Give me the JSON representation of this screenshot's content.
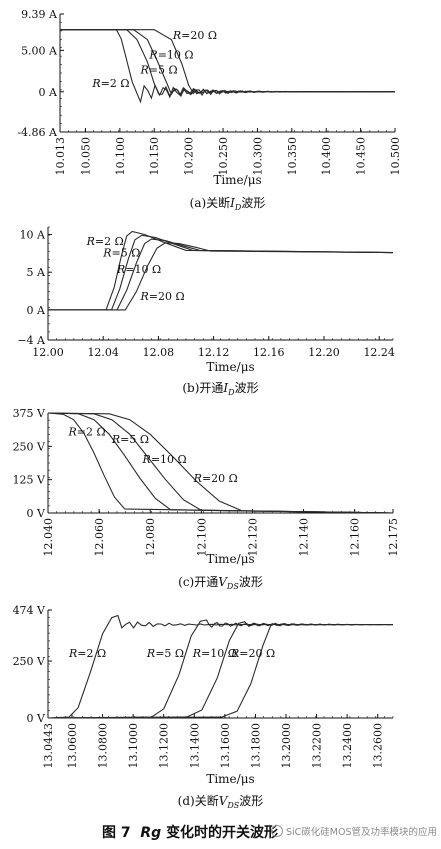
{
  "chart_data": [
    {
      "type": "line",
      "caption": "(a)关断I_D波形",
      "caption_parts": {
        "prefix": "(a)关断",
        "var": "I",
        "sub": "D",
        "suffix": "波形"
      },
      "xlabel": "Time/μs",
      "ylabel": "",
      "xlim": [
        10.013,
        10.5
      ],
      "ylim": [
        -4.86,
        9.39
      ],
      "xticks": [
        10.013,
        10.05,
        10.1,
        10.15,
        10.2,
        10.25,
        10.3,
        10.35,
        10.4,
        10.45,
        10.5
      ],
      "xtick_labels": [
        "10.013",
        "10.050",
        "10.100",
        "10.150",
        "10.200",
        "10.250",
        "10.300",
        "10.350",
        "10.400",
        "10.450",
        "10.500"
      ],
      "yticks": [
        -4.86,
        0,
        5,
        9.39
      ],
      "ytick_labels": [
        "-4.86 A",
        "0 A",
        "5.00 A",
        "9.39 A"
      ],
      "grid": false,
      "steady_value": 7.5,
      "series": [
        {
          "name": "R=2 Ω",
          "x": [
            10.013,
            10.095,
            10.102,
            10.11,
            10.118,
            10.125,
            10.13
          ],
          "y": [
            7.5,
            7.5,
            6.4,
            3.8,
            1.2,
            -0.2,
            -1.2
          ],
          "ringing_amplitude": 1.2
        },
        {
          "name": "R=5 Ω",
          "x": [
            10.013,
            10.11,
            10.125,
            10.14,
            10.15,
            10.158
          ],
          "y": [
            7.5,
            7.5,
            6.3,
            3.6,
            1.0,
            -0.4
          ],
          "ringing_amplitude": 0.9
        },
        {
          "name": "R=10 Ω",
          "x": [
            10.013,
            10.12,
            10.14,
            10.155,
            10.168,
            10.175
          ],
          "y": [
            7.5,
            7.5,
            6.3,
            3.6,
            1.1,
            -0.3
          ],
          "ringing_amplitude": 0.7
        },
        {
          "name": "R=20 Ω",
          "x": [
            10.013,
            10.15,
            10.175,
            10.19,
            10.2,
            10.207
          ],
          "y": [
            7.5,
            7.5,
            6.3,
            3.4,
            0.8,
            -0.2
          ],
          "ringing_amplitude": 0.5
        }
      ],
      "labels": [
        {
          "var": "R",
          "text": "=20 Ω",
          "x": 10.177,
          "y": 6.4
        },
        {
          "var": "R",
          "text": "=10 Ω",
          "x": 10.143,
          "y": 4.0
        },
        {
          "var": "R",
          "text": "=5 Ω",
          "x": 10.13,
          "y": 2.2
        },
        {
          "var": "R",
          "text": "=2 Ω",
          "x": 10.06,
          "y": 0.6
        }
      ]
    },
    {
      "type": "line",
      "caption": "(b)开通I_D波形",
      "caption_parts": {
        "prefix": "(b)开通",
        "var": "I",
        "sub": "D",
        "suffix": "波形"
      },
      "xlabel": "Time/μs",
      "ylabel": "",
      "xlim": [
        12.0,
        12.25
      ],
      "ylim": [
        -4,
        11
      ],
      "xticks": [
        12.0,
        12.04,
        12.08,
        12.12,
        12.16,
        12.2,
        12.24
      ],
      "xtick_labels": [
        "12.00",
        "12.04",
        "12.08",
        "12.12",
        "12.16",
        "12.20",
        "12.24"
      ],
      "yticks": [
        -4,
        0,
        5,
        10
      ],
      "ytick_labels": [
        "−4 A",
        "0 A",
        "5 A",
        "10 A"
      ],
      "grid": false,
      "series": [
        {
          "name": "R=2 Ω",
          "x": [
            12.0,
            12.042,
            12.048,
            12.053,
            12.057,
            12.061,
            12.07,
            12.085,
            12.1,
            12.25
          ],
          "y": [
            0,
            0,
            3.0,
            7.0,
            9.8,
            10.4,
            10.0,
            8.9,
            7.9,
            7.6
          ]
        },
        {
          "name": "R=5 Ω",
          "x": [
            12.0,
            12.046,
            12.052,
            12.058,
            12.063,
            12.068,
            12.078,
            12.092,
            12.105,
            12.25
          ],
          "y": [
            0,
            0,
            2.8,
            6.6,
            9.3,
            9.9,
            9.6,
            8.7,
            7.9,
            7.6
          ]
        },
        {
          "name": "R=10 Ω",
          "x": [
            12.0,
            12.05,
            12.057,
            12.064,
            12.07,
            12.075,
            12.085,
            12.098,
            12.11,
            12.25
          ],
          "y": [
            0,
            0,
            2.6,
            6.2,
            8.8,
            9.4,
            9.2,
            8.5,
            7.9,
            7.6
          ]
        },
        {
          "name": "R=20 Ω",
          "x": [
            12.0,
            12.056,
            12.064,
            12.072,
            12.079,
            12.085,
            12.095,
            12.107,
            12.118,
            12.25
          ],
          "y": [
            0,
            0,
            2.4,
            5.8,
            8.2,
            8.9,
            8.8,
            8.3,
            7.8,
            7.6
          ]
        }
      ],
      "labels": [
        {
          "var": "R",
          "text": "=2 Ω",
          "x": 12.028,
          "y": 8.6
        },
        {
          "var": "R",
          "text": "=5 Ω",
          "x": 12.04,
          "y": 7.1
        },
        {
          "var": "R",
          "text": "=10 Ω",
          "x": 12.05,
          "y": 4.9
        },
        {
          "var": "R",
          "text": "=20 Ω",
          "x": 12.067,
          "y": 1.3
        }
      ]
    },
    {
      "type": "line",
      "caption": "(c)开通V_DS波形",
      "caption_parts": {
        "prefix": "(c)开通",
        "var": "V",
        "sub": "DS",
        "suffix": "波形"
      },
      "xlabel": "Time/μs",
      "ylabel": "",
      "xlim": [
        12.04,
        12.175
      ],
      "ylim": [
        0,
        375
      ],
      "xticks": [
        12.04,
        12.06,
        12.08,
        12.1,
        12.12,
        12.14,
        12.16,
        12.175
      ],
      "xtick_labels": [
        "12.040",
        "12.060",
        "12.080",
        "12.100",
        "12.120",
        "12.140",
        "12.160",
        "12.175"
      ],
      "yticks": [
        0,
        125,
        250,
        375
      ],
      "ytick_labels": [
        "0 V",
        "125 V",
        "250 V",
        "375 V"
      ],
      "grid": false,
      "series": [
        {
          "name": "R=2 Ω",
          "x": [
            12.04,
            12.046,
            12.05,
            12.054,
            12.058,
            12.062,
            12.066,
            12.07,
            12.175
          ],
          "y": [
            375,
            370,
            350,
            300,
            225,
            140,
            60,
            15,
            0
          ]
        },
        {
          "name": "R=5 Ω",
          "x": [
            12.04,
            12.052,
            12.058,
            12.064,
            12.07,
            12.076,
            12.082,
            12.088,
            12.175
          ],
          "y": [
            375,
            372,
            350,
            295,
            215,
            130,
            55,
            12,
            0
          ]
        },
        {
          "name": "R=10 Ω",
          "x": [
            12.04,
            12.058,
            12.065,
            12.072,
            12.079,
            12.086,
            12.093,
            12.1,
            12.175
          ],
          "y": [
            375,
            372,
            350,
            295,
            210,
            125,
            50,
            10,
            0
          ]
        },
        {
          "name": "R=20 Ω",
          "x": [
            12.04,
            12.064,
            12.072,
            12.08,
            12.089,
            12.098,
            12.107,
            12.116,
            12.175
          ],
          "y": [
            375,
            372,
            350,
            295,
            210,
            120,
            45,
            8,
            0
          ]
        }
      ],
      "labels": [
        {
          "var": "R",
          "text": "=2 Ω",
          "x": 12.048,
          "y": 290
        },
        {
          "var": "R",
          "text": "=5 Ω",
          "x": 12.065,
          "y": 262
        },
        {
          "var": "R",
          "text": "=10 Ω",
          "x": 12.077,
          "y": 188
        },
        {
          "var": "R",
          "text": "=20 Ω",
          "x": 12.097,
          "y": 117
        }
      ]
    },
    {
      "type": "line",
      "caption": "(d)关断V_DS波形",
      "caption_parts": {
        "prefix": "(d)关断",
        "var": "V",
        "sub": "DS",
        "suffix": "波形"
      },
      "xlabel": "Time/μs",
      "ylabel": "",
      "xlim": [
        13.0443,
        13.27
      ],
      "ylim": [
        0,
        474
      ],
      "xticks": [
        13.0443,
        13.06,
        13.08,
        13.1,
        13.12,
        13.14,
        13.16,
        13.18,
        13.2,
        13.22,
        13.24,
        13.26
      ],
      "xtick_labels": [
        "13.0443",
        "13.0600",
        "13.0800",
        "13.1000",
        "13.1200",
        "13.1400",
        "13.1600",
        "13.1800",
        "13.2000",
        "13.2200",
        "13.2400",
        "13.2600"
      ],
      "yticks": [
        0,
        250,
        474
      ],
      "ytick_labels": [
        "0 V",
        "250 V",
        "474 V"
      ],
      "grid": false,
      "steady_value": 410,
      "series": [
        {
          "name": "R=2 Ω",
          "x": [
            13.0443,
            13.058,
            13.064,
            13.072,
            13.08,
            13.086,
            13.09
          ],
          "y": [
            0,
            4,
            45,
            200,
            370,
            440,
            450
          ],
          "ringing_amplitude": 22
        },
        {
          "name": "R=5 Ω",
          "x": [
            13.0443,
            13.112,
            13.12,
            13.13,
            13.138,
            13.144,
            13.148
          ],
          "y": [
            0,
            4,
            40,
            190,
            360,
            425,
            430
          ],
          "ringing_amplitude": 13
        },
        {
          "name": "R=10 Ω",
          "x": [
            13.0443,
            13.135,
            13.145,
            13.155,
            13.163,
            13.169,
            13.173
          ],
          "y": [
            0,
            4,
            35,
            175,
            340,
            415,
            422
          ],
          "ringing_amplitude": 9
        },
        {
          "name": "R=20 Ω",
          "x": [
            13.0443,
            13.158,
            13.168,
            13.177,
            13.185,
            13.19,
            13.193
          ],
          "y": [
            0,
            4,
            30,
            150,
            320,
            405,
            415
          ],
          "ringing_amplitude": 6
        }
      ],
      "labels": [
        {
          "var": "R",
          "text": "=2 Ω",
          "x": 13.058,
          "y": 268
        },
        {
          "var": "R",
          "text": "=5 Ω",
          "x": 13.109,
          "y": 268
        },
        {
          "var": "R",
          "text": "=10 Ω",
          "x": 13.139,
          "y": 268
        },
        {
          "var": "R",
          "text": "=20 Ω",
          "x": 13.164,
          "y": 268
        }
      ]
    }
  ],
  "figure": {
    "title_prefix": "图 7",
    "title_var": "Rg",
    "title_suffix": "变化时的开关波形"
  },
  "watermark": "SiC碳化硅MOS管及功率模块的应用",
  "colors": {
    "trace": "#2b2b2b",
    "axis": "#111111",
    "text": "#111111",
    "watermark": "#8a8a8a"
  }
}
